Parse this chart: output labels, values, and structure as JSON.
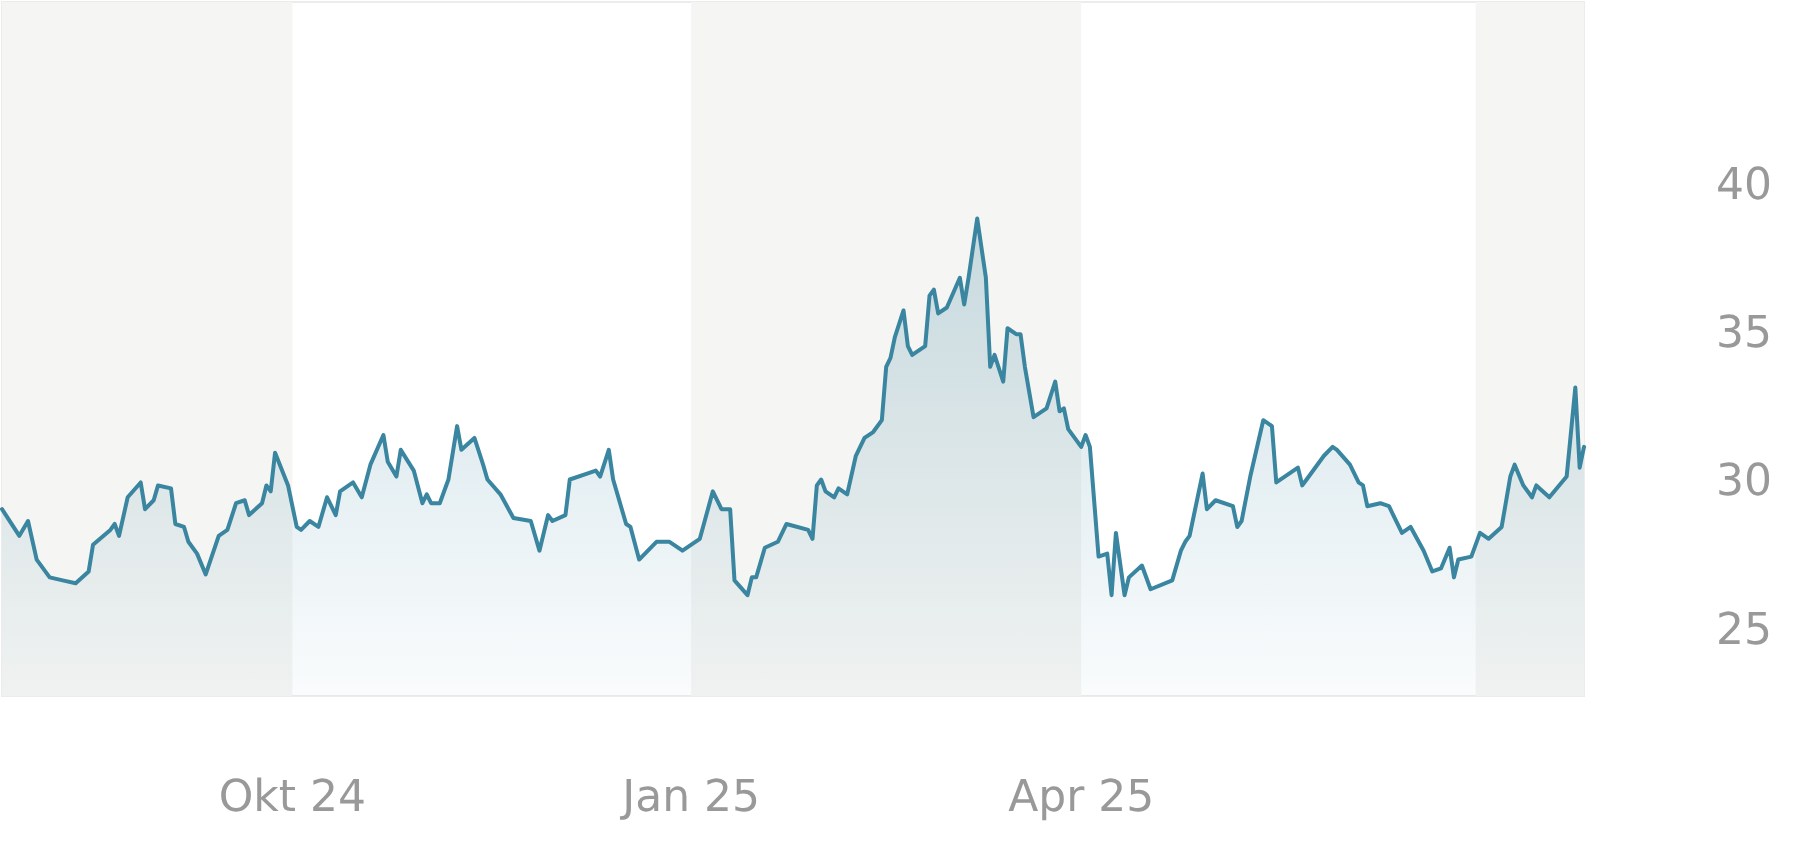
{
  "chart_data": {
    "type": "area",
    "xlim": [
      "2024-07-26",
      "2025-07-26"
    ],
    "ylim": [
      22.8,
      46.2
    ],
    "xticks": [
      {
        "value": "2024-10-01",
        "label": "Okt 24"
      },
      {
        "value": "2025-01-01",
        "label": "Jan 25"
      },
      {
        "value": "2025-04-01",
        "label": "Apr 25"
      }
    ],
    "yticks": [
      25,
      30,
      35,
      40
    ],
    "marker": "none",
    "line_style": "solid",
    "bands": [
      {
        "axis": "x",
        "from": "2024-07-26",
        "to": "2024-10-01",
        "color": "#f5f5f3"
      },
      {
        "axis": "x",
        "from": "2025-01-01",
        "to": "2025-04-01",
        "color": "#f5f5f3"
      },
      {
        "axis": "x",
        "from": "2025-07-01",
        "to": "2025-07-26",
        "color": "#f5f5f3"
      }
    ],
    "series": [
      {
        "color": "#3a85a0",
        "x": [
          "2024-07-26",
          "2024-07-30",
          "2024-08-01",
          "2024-08-03",
          "2024-08-06",
          "2024-08-09",
          "2024-08-12",
          "2024-08-15",
          "2024-08-16",
          "2024-08-20",
          "2024-08-21",
          "2024-08-22",
          "2024-08-24",
          "2024-08-27",
          "2024-08-28",
          "2024-08-30",
          "2024-08-31",
          "2024-09-03",
          "2024-09-04",
          "2024-09-06",
          "2024-09-07",
          "2024-09-09",
          "2024-09-11",
          "2024-09-14",
          "2024-09-16",
          "2024-09-18",
          "2024-09-20",
          "2024-09-21",
          "2024-09-24",
          "2024-09-25",
          "2024-09-26",
          "2024-09-27",
          "2024-09-30",
          "2024-10-02",
          "2024-10-03",
          "2024-10-05",
          "2024-10-07",
          "2024-10-09",
          "2024-10-11",
          "2024-10-12",
          "2024-10-15",
          "2024-10-17",
          "2024-10-19",
          "2024-10-22",
          "2024-10-23",
          "2024-10-25",
          "2024-10-26",
          "2024-10-29",
          "2024-10-31",
          "2024-11-01",
          "2024-11-02",
          "2024-11-04",
          "2024-11-06",
          "2024-11-08",
          "2024-11-09",
          "2024-11-12",
          "2024-11-14",
          "2024-11-15",
          "2024-11-18",
          "2024-11-21",
          "2024-11-25",
          "2024-11-27",
          "2024-11-29",
          "2024-11-30",
          "2024-12-03",
          "2024-12-04",
          "2024-12-08",
          "2024-12-10",
          "2024-12-11",
          "2024-12-13",
          "2024-12-14",
          "2024-12-17",
          "2024-12-18",
          "2024-12-20",
          "2024-12-24",
          "2024-12-27",
          "2024-12-30",
          "2025-01-03",
          "2025-01-06",
          "2025-01-08",
          "2025-01-10",
          "2025-01-11",
          "2025-01-14",
          "2025-01-15",
          "2025-01-16",
          "2025-01-18",
          "2025-01-21",
          "2025-01-23",
          "2025-01-28",
          "2025-01-29",
          "2025-01-30",
          "2025-01-31",
          "2025-02-01",
          "2025-02-03",
          "2025-02-04",
          "2025-02-06",
          "2025-02-08",
          "2025-02-10",
          "2025-02-12",
          "2025-02-14",
          "2025-02-15",
          "2025-02-16",
          "2025-02-17",
          "2025-02-19",
          "2025-02-20",
          "2025-02-21",
          "2025-02-24",
          "2025-02-25",
          "2025-02-26",
          "2025-02-27",
          "2025-03-01",
          "2025-03-04",
          "2025-03-05",
          "2025-03-06",
          "2025-03-08",
          "2025-03-10",
          "2025-03-11",
          "2025-03-12",
          "2025-03-14",
          "2025-03-15",
          "2025-03-17",
          "2025-03-18",
          "2025-03-19",
          "2025-03-21",
          "2025-03-24",
          "2025-03-26",
          "2025-03-27",
          "2025-03-28",
          "2025-03-29",
          "2025-04-01",
          "2025-04-02",
          "2025-04-03",
          "2025-04-05",
          "2025-04-07",
          "2025-04-08",
          "2025-04-09",
          "2025-04-11",
          "2025-04-12",
          "2025-04-15",
          "2025-04-17",
          "2025-04-22",
          "2025-04-24",
          "2025-04-25",
          "2025-04-26",
          "2025-04-29",
          "2025-04-30",
          "2025-05-02",
          "2025-05-06",
          "2025-05-07",
          "2025-05-08",
          "2025-05-10",
          "2025-05-13",
          "2025-05-15",
          "2025-05-16",
          "2025-05-21",
          "2025-05-22",
          "2025-05-23",
          "2025-05-27",
          "2025-05-29",
          "2025-05-30",
          "2025-06-02",
          "2025-06-04",
          "2025-06-05",
          "2025-06-06",
          "2025-06-09",
          "2025-06-11",
          "2025-06-12",
          "2025-06-14",
          "2025-06-16",
          "2025-06-19",
          "2025-06-21",
          "2025-06-23",
          "2025-06-25",
          "2025-06-26",
          "2025-06-27",
          "2025-06-30",
          "2025-07-02",
          "2025-07-04",
          "2025-07-07",
          "2025-07-09",
          "2025-07-10",
          "2025-07-12",
          "2025-07-14",
          "2025-07-15",
          "2025-07-18",
          "2025-07-22",
          "2025-07-24",
          "2025-07-25",
          "2025-07-26"
        ],
        "values": [
          29.1,
          28.2,
          28.7,
          27.4,
          26.8,
          26.7,
          26.6,
          27.0,
          27.9,
          28.4,
          28.6,
          28.2,
          29.5,
          30.0,
          29.1,
          29.4,
          29.9,
          29.8,
          28.6,
          28.5,
          28.0,
          27.6,
          26.9,
          28.2,
          28.4,
          29.3,
          29.4,
          28.9,
          29.3,
          29.9,
          29.7,
          31.0,
          29.9,
          28.5,
          28.4,
          28.7,
          28.5,
          29.5,
          28.9,
          29.7,
          30.0,
          29.5,
          30.6,
          31.6,
          30.7,
          30.2,
          31.1,
          30.4,
          29.3,
          29.6,
          29.3,
          29.3,
          30.1,
          31.9,
          31.1,
          31.5,
          30.6,
          30.1,
          29.6,
          28.8,
          28.7,
          27.7,
          28.9,
          28.7,
          28.9,
          30.1,
          30.3,
          30.4,
          30.2,
          31.1,
          30.1,
          28.6,
          28.5,
          27.4,
          28.0,
          28.0,
          27.7,
          28.1,
          29.7,
          29.1,
          29.1,
          26.7,
          26.2,
          26.8,
          26.8,
          27.8,
          28.0,
          28.6,
          28.4,
          28.1,
          29.9,
          30.1,
          29.7,
          29.5,
          29.8,
          29.6,
          30.9,
          31.5,
          31.7,
          32.1,
          33.9,
          34.2,
          34.9,
          35.8,
          34.6,
          34.3,
          34.6,
          36.3,
          36.5,
          35.7,
          35.9,
          36.9,
          36.0,
          36.9,
          38.9,
          36.9,
          33.9,
          34.3,
          33.4,
          35.2,
          35.0,
          35.0,
          33.9,
          32.2,
          32.5,
          33.4,
          32.4,
          32.5,
          31.8,
          31.2,
          31.6,
          31.2,
          27.5,
          27.6,
          26.2,
          28.3,
          26.2,
          26.8,
          27.2,
          26.4,
          26.7,
          27.7,
          28.0,
          28.2,
          30.3,
          29.1,
          29.4,
          29.2,
          28.5,
          28.7,
          30.2,
          32.1,
          31.9,
          30.0,
          30.5,
          29.9,
          30.1,
          30.9,
          31.2,
          31.1,
          30.6,
          30.0,
          29.9,
          29.2,
          29.3,
          29.2,
          28.9,
          28.3,
          28.5,
          27.7,
          27.0,
          27.1,
          27.8,
          26.8,
          27.4,
          27.5,
          28.3,
          28.1,
          28.5,
          30.2,
          30.6,
          29.9,
          29.5,
          29.9,
          29.5,
          30.2,
          33.2,
          30.5,
          31.2
        ]
      }
    ]
  }
}
